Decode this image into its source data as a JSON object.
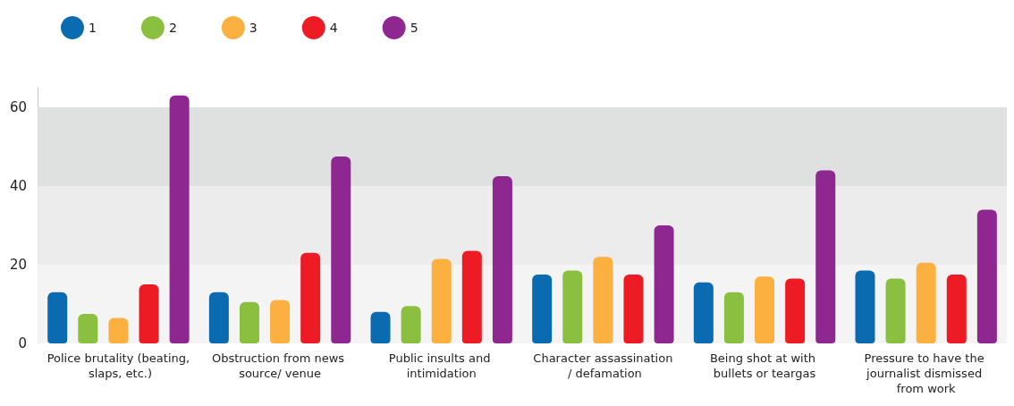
{
  "chart_data": {
    "type": "bar",
    "categories": [
      "Police brutality (beating, slaps, etc.)",
      "Obstruction from news source/ venue",
      "Public insults and intimidation",
      "Character assassination / defamation",
      "Being shot at with bullets or teargas",
      "Pressure to have the journalist dismissed from work"
    ],
    "series": [
      {
        "name": "1",
        "color": "#0a6bb0",
        "values": [
          13,
          13,
          8,
          17.5,
          15.5,
          18.5
        ]
      },
      {
        "name": "2",
        "color": "#8abf3f",
        "values": [
          7.5,
          10.5,
          9.5,
          18.5,
          13,
          16.5
        ]
      },
      {
        "name": "3",
        "color": "#fbb040",
        "values": [
          6.5,
          11,
          21.5,
          22,
          17,
          20.5
        ]
      },
      {
        "name": "4",
        "color": "#ed1c24",
        "values": [
          15,
          23,
          23.5,
          17.5,
          16.5,
          17.5
        ]
      },
      {
        "name": "5",
        "color": "#8e278f",
        "values": [
          63,
          47.5,
          42.5,
          30,
          44,
          34
        ]
      }
    ],
    "ylim": [
      0,
      65
    ],
    "yticks": [
      0,
      20,
      40,
      60
    ],
    "legend": "top left",
    "bands": [
      {
        "axis": "y",
        "from": 0,
        "to": 20,
        "color": "#f4f4f4"
      },
      {
        "axis": "y",
        "from": 20,
        "to": 40,
        "color": "#ececec"
      },
      {
        "axis": "y",
        "from": 40,
        "to": 60,
        "color": "#dfe0e0"
      }
    ]
  }
}
